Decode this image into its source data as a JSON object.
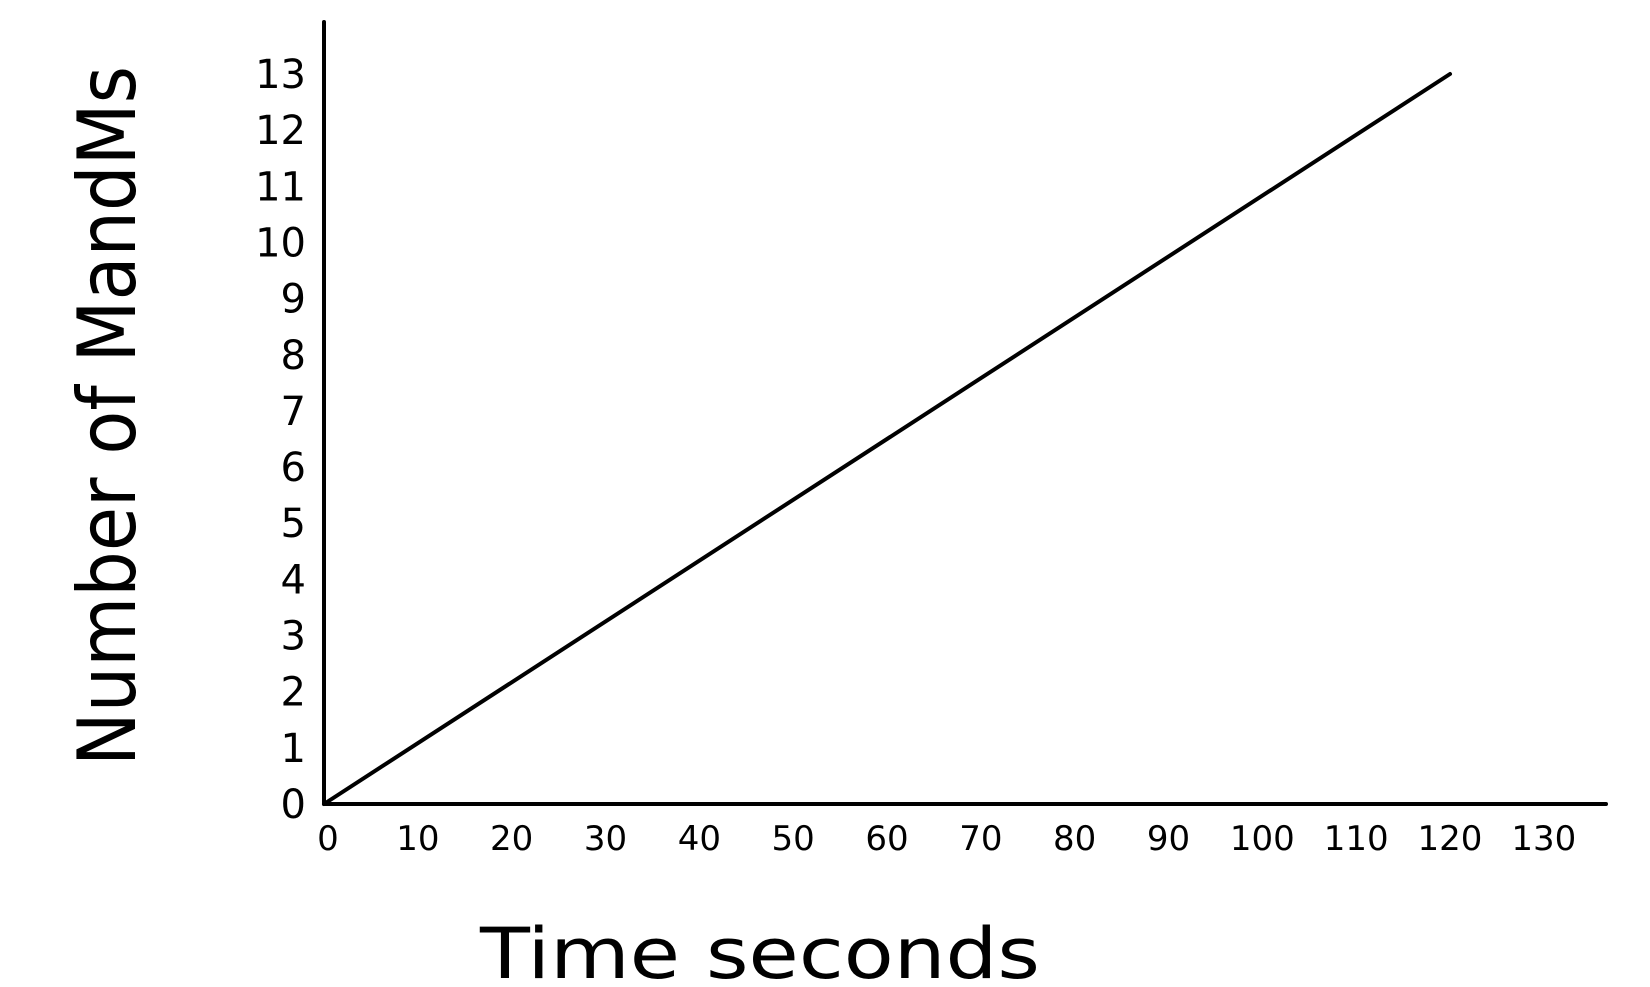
{
  "chart_data": {
    "type": "line",
    "title": "",
    "xlabel": "Time seconds",
    "ylabel": "Number of MandMs",
    "x_ticks": [
      "0",
      "10",
      "20",
      "30",
      "40",
      "50",
      "60",
      "70",
      "80",
      "90",
      "100",
      "110",
      "120",
      "130"
    ],
    "y_ticks": [
      "0",
      "1",
      "2",
      "3",
      "4",
      "5",
      "6",
      "7",
      "8",
      "9",
      "10",
      "11",
      "12",
      "13"
    ],
    "xlim": [
      0,
      130
    ],
    "ylim": [
      0,
      13
    ],
    "grid": false,
    "series": [
      {
        "x": [
          0,
          120
        ],
        "y": [
          0,
          13
        ]
      }
    ],
    "colors": {
      "line": "#000000",
      "axis": "#000000"
    }
  }
}
